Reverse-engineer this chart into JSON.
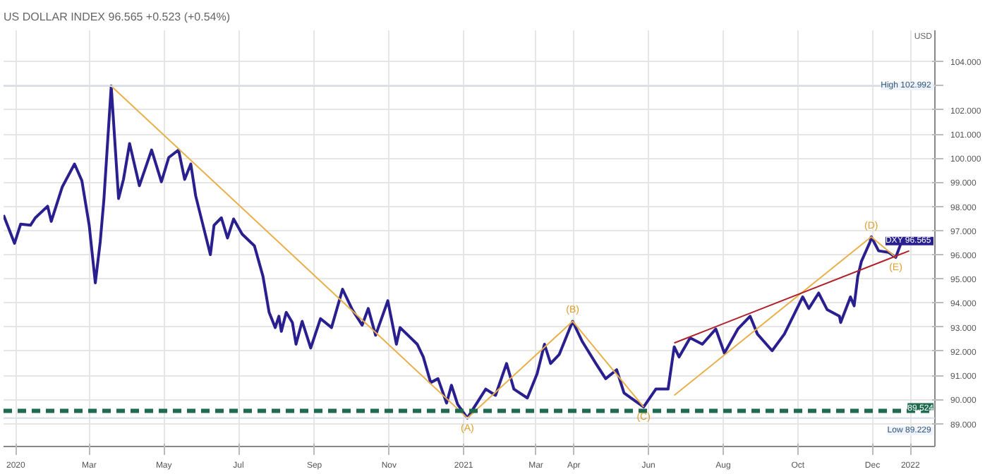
{
  "chart_data": {
    "type": "line",
    "title": "US DOLLAR INDEX  96.565  +0.523 (+0.54%)",
    "xlim": [
      "2019-12-22",
      "2022-01-21"
    ],
    "xticks": [
      {
        "value": "2020-01-01",
        "label": "2020"
      },
      {
        "value": "2020-03-01",
        "label": "Mar"
      },
      {
        "value": "2020-05-01",
        "label": "May"
      },
      {
        "value": "2020-07-01",
        "label": "Jul"
      },
      {
        "value": "2020-09-01",
        "label": "Sep"
      },
      {
        "value": "2020-11-01",
        "label": "Nov"
      },
      {
        "value": "2021-01-01",
        "label": "2021"
      },
      {
        "value": "2021-03-01",
        "label": "Mar"
      },
      {
        "value": "2021-04-01",
        "label": "Apr"
      },
      {
        "value": "2021-06-01",
        "label": "Jun"
      },
      {
        "value": "2021-08-01",
        "label": "Aug"
      },
      {
        "value": "2021-10-01",
        "label": "Oct"
      },
      {
        "value": "2021-12-01",
        "label": "Dec"
      },
      {
        "value": "2022-01-01",
        "label": "2022"
      }
    ],
    "ylim": [
      88.05,
      105.3
    ],
    "yticks": [
      {
        "value": 89,
        "label": "89.000"
      },
      {
        "value": 90,
        "label": "90.000"
      },
      {
        "value": 91,
        "label": "91.000"
      },
      {
        "value": 92,
        "label": "92.000"
      },
      {
        "value": 93,
        "label": "93.000"
      },
      {
        "value": 94,
        "label": "94.000"
      },
      {
        "value": 95,
        "label": "95.000"
      },
      {
        "value": 96,
        "label": "96.000"
      },
      {
        "value": 97,
        "label": "97.000"
      },
      {
        "value": 98,
        "label": "98.000"
      },
      {
        "value": 99,
        "label": "99.000"
      },
      {
        "value": 100,
        "label": "100.000"
      },
      {
        "value": 101,
        "label": "101.000"
      },
      {
        "value": 102,
        "label": "102.000"
      },
      {
        "value": 103,
        "label": null
      },
      {
        "value": 104,
        "label": "104.000"
      }
    ],
    "grid": true,
    "marker": "none",
    "line_style": "solid",
    "series": [
      {
        "color": "#2a1f8f",
        "x": [
          "2019-12-22",
          "2019-12-31",
          "2020-01-05",
          "2020-01-13",
          "2020-01-17",
          "2020-01-27",
          "2020-01-30",
          "2020-02-08",
          "2020-02-18",
          "2020-02-24",
          "2020-03-01",
          "2020-03-06",
          "2020-03-10",
          "2020-03-13",
          "2020-03-19",
          "2020-03-25",
          "2020-03-29",
          "2020-04-03",
          "2020-04-11",
          "2020-04-21",
          "2020-04-29",
          "2020-05-05",
          "2020-05-13",
          "2020-05-18",
          "2020-05-23",
          "2020-05-27",
          "2020-06-02",
          "2020-06-08",
          "2020-06-11",
          "2020-06-17",
          "2020-06-22",
          "2020-06-27",
          "2020-07-04",
          "2020-07-14",
          "2020-07-21",
          "2020-07-26",
          "2020-07-31",
          "2020-08-03",
          "2020-08-05",
          "2020-08-09",
          "2020-08-14",
          "2020-08-17",
          "2020-08-22",
          "2020-08-29",
          "2020-09-06",
          "2020-09-15",
          "2020-09-24",
          "2020-10-02",
          "2020-10-10",
          "2020-10-15",
          "2020-10-21",
          "2020-10-31",
          "2020-11-07",
          "2020-11-10",
          "2020-11-24",
          "2020-11-29",
          "2020-12-05",
          "2020-12-11",
          "2020-12-18",
          "2020-12-22",
          "2020-12-27",
          "2021-01-04",
          "2021-01-19",
          "2021-01-27",
          "2021-02-05",
          "2021-02-11",
          "2021-02-22",
          "2021-03-02",
          "2021-03-08",
          "2021-03-13",
          "2021-03-20",
          "2021-03-31",
          "2021-04-08",
          "2021-04-19",
          "2021-04-27",
          "2021-05-06",
          "2021-05-12",
          "2021-05-19",
          "2021-05-28",
          "2021-06-07",
          "2021-06-17",
          "2021-06-22",
          "2021-06-26",
          "2021-07-05",
          "2021-07-15",
          "2021-07-26",
          "2021-08-02",
          "2021-08-13",
          "2021-08-23",
          "2021-08-29",
          "2021-09-10",
          "2021-09-20",
          "2021-10-05",
          "2021-10-10",
          "2021-10-18",
          "2021-10-25",
          "2021-11-04",
          "2021-11-05",
          "2021-11-13",
          "2021-11-16",
          "2021-11-19",
          "2021-11-22",
          "2021-11-29",
          "2021-11-30",
          "2021-12-06",
          "2021-12-14",
          "2021-12-20",
          "2021-12-25"
        ],
        "values": [
          97.64,
          96.47,
          97.27,
          97.22,
          97.53,
          98.01,
          97.38,
          98.81,
          99.76,
          99.07,
          97.22,
          94.83,
          96.53,
          98.28,
          102.99,
          98.33,
          99.12,
          100.61,
          98.86,
          100.34,
          99.02,
          100.03,
          100.34,
          99.12,
          99.76,
          98.44,
          97.22,
          96.0,
          97.22,
          97.53,
          96.69,
          97.48,
          96.85,
          96.37,
          95.1,
          93.61,
          92.98,
          93.45,
          92.82,
          93.61,
          93.19,
          92.29,
          93.24,
          92.13,
          93.35,
          92.98,
          94.57,
          93.72,
          93.08,
          93.77,
          92.66,
          94.09,
          92.29,
          92.98,
          92.29,
          91.76,
          90.7,
          90.86,
          89.85,
          90.59,
          89.8,
          89.23,
          90.43,
          90.17,
          91.49,
          90.43,
          90.06,
          91.07,
          92.29,
          91.49,
          91.86,
          93.24,
          92.39,
          91.49,
          90.86,
          91.23,
          90.27,
          90.01,
          89.69,
          90.43,
          90.43,
          92.18,
          91.76,
          92.55,
          92.29,
          92.92,
          91.92,
          92.92,
          93.45,
          92.71,
          92.02,
          92.71,
          94.25,
          93.77,
          94.41,
          93.72,
          93.45,
          93.19,
          94.25,
          93.88,
          95.1,
          95.73,
          96.53,
          96.74,
          96.16,
          96.1,
          95.89,
          96.57
        ]
      },
      {
        "color": "#e8b04a",
        "x": [
          "2020-03-19",
          "2021-01-04",
          "2021-03-31",
          "2021-05-28"
        ],
        "values": [
          102.99,
          89.23,
          93.24,
          89.69
        ]
      },
      {
        "color": "#e8b04a",
        "x": [
          "2021-06-22",
          "2021-11-30",
          "2021-12-20"
        ],
        "values": [
          90.17,
          96.74,
          95.89
        ]
      },
      {
        "color": "#b0202a",
        "x": [
          "2021-06-22",
          "2021-12-31"
        ],
        "values": [
          92.34,
          96.16
        ]
      }
    ],
    "ref_lines": [
      {
        "axis": "y",
        "value": 102.992,
        "label": "High  102.992",
        "color": "#d5dcea",
        "line_style": "solid"
      },
      {
        "axis": "y",
        "value": 89.524,
        "label": "89.524",
        "color": "#1e6b4f",
        "line_style": "dashed"
      },
      {
        "axis": "y",
        "value": 89.229,
        "label": "Low  89.229",
        "color": "#d5dcea",
        "line_style": "solid"
      }
    ],
    "annotations": [
      {
        "text": "(A)",
        "x": "2021-01-04",
        "y": 89.23
      },
      {
        "text": "(B)",
        "x": "2021-03-31",
        "y": 93.24
      },
      {
        "text": "(C)",
        "x": "2021-05-28",
        "y": 89.69
      },
      {
        "text": "(D)",
        "x": "2021-11-30",
        "y": 96.74
      },
      {
        "text": "(E)",
        "x": "2021-12-20",
        "y": 95.89
      },
      {
        "text": "DXY  96.565",
        "x": "2021-12-25",
        "y": 96.565
      },
      "USD"
    ]
  }
}
